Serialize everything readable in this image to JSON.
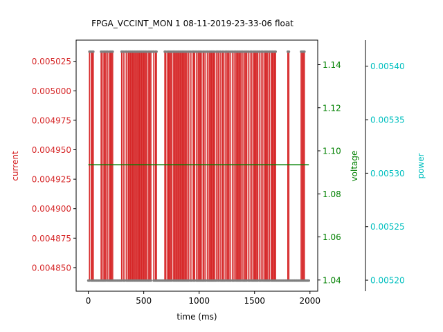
{
  "chart_data": {
    "type": "line",
    "title": "FPGA_VCCINT_MON   1   08-11-2019-23-33-06   float",
    "xlabel": "time (ms)",
    "xlim": [
      -110,
      2070
    ],
    "xticks": [
      0,
      500,
      1000,
      1500,
      2000
    ],
    "x_tick_labels": [
      "0",
      "500",
      "1000",
      "1500",
      "2000"
    ],
    "grid": false,
    "colors": {
      "current": "#d62728",
      "voltage": "#008000",
      "power": "#00bfbf",
      "marker": "#7f7f7f",
      "axis": "#000000"
    },
    "axes": {
      "current": {
        "label": "current",
        "lim": [
          0.00483,
          0.005043
        ],
        "ticks": [
          0.00485,
          0.004875,
          0.0049,
          0.004925,
          0.00495,
          0.004975,
          0.005,
          0.005025
        ],
        "tick_labels": [
          "0.004850",
          "0.004875",
          "0.004900",
          "0.004925",
          "0.004950",
          "0.004975",
          "0.005000",
          "0.005025"
        ]
      },
      "voltage": {
        "label": "voltage",
        "lim": [
          1.0348,
          1.1514
        ],
        "ticks": [
          1.04,
          1.06,
          1.08,
          1.1,
          1.12,
          1.14
        ],
        "tick_labels": [
          "1.04",
          "1.06",
          "1.08",
          "1.10",
          "1.12",
          "1.14"
        ]
      },
      "power": {
        "label": "power",
        "lim": [
          0.0051897,
          0.0054244
        ],
        "ticks": [
          0.0052,
          0.00525,
          0.0053,
          0.00535,
          0.0054
        ],
        "tick_labels": [
          "0.00520",
          "0.00525",
          "0.00530",
          "0.00535",
          "0.00540"
        ]
      }
    },
    "series": [
      {
        "axis": "current",
        "low": 0.004839,
        "high": 0.0050332,
        "x_start": 0,
        "x_end": 1990,
        "transitions": [
          10,
          25,
          35,
          45,
          115,
          125,
          140,
          150,
          160,
          175,
          190,
          200,
          210,
          220,
          300,
          315,
          330,
          345,
          360,
          370,
          380,
          390,
          400,
          410,
          420,
          430,
          440,
          450,
          460,
          470,
          480,
          490,
          500,
          510,
          520,
          530,
          545,
          555,
          565,
          590,
          605,
          615,
          690,
          700,
          715,
          725,
          735,
          745,
          755,
          770,
          780,
          790,
          800,
          810,
          820,
          830,
          840,
          850,
          860,
          870,
          880,
          890,
          905,
          920,
          935,
          950,
          960,
          975,
          990,
          1000,
          1010,
          1020,
          1035,
          1045,
          1060,
          1075,
          1090,
          1100,
          1110,
          1120,
          1130,
          1140,
          1155,
          1170,
          1180,
          1195,
          1210,
          1220,
          1235,
          1250,
          1260,
          1270,
          1285,
          1300,
          1315,
          1330,
          1340,
          1350,
          1360,
          1370,
          1380,
          1395,
          1410,
          1420,
          1430,
          1445,
          1460,
          1475,
          1490,
          1500,
          1510,
          1520,
          1530,
          1545,
          1560,
          1575,
          1590,
          1600,
          1610,
          1620,
          1635,
          1650,
          1660,
          1670,
          1680,
          1690,
          1800,
          1810,
          1920,
          1930,
          1940,
          1950
        ]
      },
      {
        "axis": "voltage",
        "x": [
          0,
          1990
        ],
        "values": [
          1.0935,
          1.0935
        ]
      },
      {
        "axis": "power",
        "x": [],
        "values": []
      }
    ]
  }
}
